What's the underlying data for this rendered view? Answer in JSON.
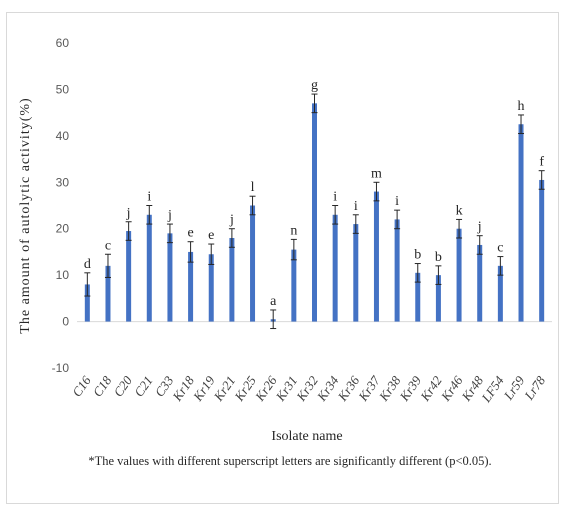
{
  "chart_data": {
    "type": "bar",
    "ylabel": "The amount of autolytic activity(%)",
    "xlabel": "Isolate name",
    "footnote": "*The values with different superscript letters are significantly different (p<0.05).",
    "ylim": [
      -10,
      60
    ],
    "yticks": [
      "-10",
      "0",
      "10",
      "20",
      "30",
      "40",
      "50",
      "60"
    ],
    "grid": false,
    "bar_color": "#4472c4",
    "categories": [
      "C16",
      "C18",
      "C20",
      "C21",
      "C33",
      "Kr18",
      "Kr19",
      "Kr21",
      "Kr25",
      "Kr26",
      "Kr31",
      "Kr32",
      "Kr34",
      "Kr36",
      "Kr37",
      "Kr38",
      "Kr39",
      "Kr42",
      "Kr46",
      "Kr48",
      "LF54",
      "Lr59",
      "Lr78"
    ],
    "values": [
      8,
      12,
      19.5,
      23,
      19,
      15,
      14.5,
      18,
      25,
      0.5,
      15.5,
      47,
      23,
      21,
      28,
      22,
      10.5,
      10,
      20,
      16.5,
      12,
      42.5,
      30.5
    ],
    "errors": [
      2.5,
      2.5,
      2,
      2,
      2,
      2.2,
      2.2,
      2,
      2,
      2,
      2.2,
      2,
      2,
      2,
      2,
      2,
      2,
      2,
      2,
      2,
      2,
      2,
      2
    ],
    "letters": [
      "d",
      "c",
      "j",
      "i",
      "j",
      "e",
      "e",
      "j",
      "l",
      "a",
      "n",
      "g",
      "i",
      "i",
      "m",
      "i",
      "b",
      "b",
      "k",
      "j",
      "c",
      "h",
      "f"
    ]
  }
}
